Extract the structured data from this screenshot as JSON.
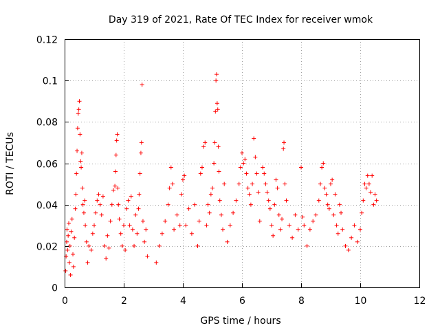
{
  "chart_data": {
    "type": "scatter",
    "title": "Day 319 of 2021, Rate Of TEC Index for receiver wmok",
    "xlabel": "GPS time / hours",
    "ylabel": "ROTI / TECUs",
    "xlim": [
      0,
      12
    ],
    "ylim": [
      0,
      0.12
    ],
    "xticks": [
      "0",
      "2",
      "4",
      "6",
      "8",
      "10",
      "12"
    ],
    "yticks": [
      "0",
      "0.02",
      "0.04",
      "0.06",
      "0.08",
      "0.1",
      "0.12"
    ],
    "grid": true,
    "marker": "+",
    "color": "#ff0000",
    "series": [
      {
        "points": [
          [
            0.03,
            0.008
          ],
          [
            0.05,
            0.015
          ],
          [
            0.07,
            0.022
          ],
          [
            0.08,
            0.028
          ],
          [
            0.1,
            0.018
          ],
          [
            0.12,
            0.025
          ],
          [
            0.14,
            0.031
          ],
          [
            0.16,
            0.012
          ],
          [
            0.18,
            0.02
          ],
          [
            0.2,
            0.006
          ],
          [
            0.22,
            0.027
          ],
          [
            0.25,
            0.033
          ],
          [
            0.28,
            0.016
          ],
          [
            0.3,
            0.01
          ],
          [
            0.33,
            0.024
          ],
          [
            0.36,
            0.038
          ],
          [
            0.38,
            0.045
          ],
          [
            0.4,
            0.055
          ],
          [
            0.42,
            0.066
          ],
          [
            0.44,
            0.077
          ],
          [
            0.46,
            0.084
          ],
          [
            0.48,
            0.086
          ],
          [
            0.5,
            0.09
          ],
          [
            0.52,
            0.074
          ],
          [
            0.54,
            0.061
          ],
          [
            0.56,
            0.058
          ],
          [
            0.58,
            0.065
          ],
          [
            0.6,
            0.048
          ],
          [
            0.62,
            0.04
          ],
          [
            0.65,
            0.036
          ],
          [
            0.68,
            0.042
          ],
          [
            0.7,
            0.03
          ],
          [
            0.74,
            0.022
          ],
          [
            0.78,
            0.012
          ],
          [
            0.82,
            0.02
          ],
          [
            0.9,
            0.018
          ],
          [
            0.95,
            0.026
          ],
          [
            1.0,
            0.03
          ],
          [
            1.05,
            0.036
          ],
          [
            1.1,
            0.042
          ],
          [
            1.15,
            0.045
          ],
          [
            1.2,
            0.04
          ],
          [
            1.25,
            0.035
          ],
          [
            1.3,
            0.044
          ],
          [
            1.35,
            0.02
          ],
          [
            1.4,
            0.014
          ],
          [
            1.45,
            0.025
          ],
          [
            1.5,
            0.019
          ],
          [
            1.55,
            0.032
          ],
          [
            1.6,
            0.04
          ],
          [
            1.65,
            0.047
          ],
          [
            1.7,
            0.049
          ],
          [
            1.72,
            0.056
          ],
          [
            1.74,
            0.064
          ],
          [
            1.76,
            0.071
          ],
          [
            1.78,
            0.074
          ],
          [
            1.8,
            0.048
          ],
          [
            1.82,
            0.04
          ],
          [
            1.85,
            0.033
          ],
          [
            1.9,
            0.026
          ],
          [
            1.95,
            0.02
          ],
          [
            2.0,
            0.03
          ],
          [
            2.05,
            0.018
          ],
          [
            2.1,
            0.038
          ],
          [
            2.15,
            0.042
          ],
          [
            2.2,
            0.03
          ],
          [
            2.25,
            0.044
          ],
          [
            2.3,
            0.028
          ],
          [
            2.35,
            0.02
          ],
          [
            2.4,
            0.035
          ],
          [
            2.45,
            0.026
          ],
          [
            2.5,
            0.038
          ],
          [
            2.52,
            0.045
          ],
          [
            2.55,
            0.055
          ],
          [
            2.58,
            0.065
          ],
          [
            2.6,
            0.07
          ],
          [
            2.62,
            0.098
          ],
          [
            2.65,
            0.032
          ],
          [
            2.7,
            0.022
          ],
          [
            2.75,
            0.028
          ],
          [
            2.8,
            0.015
          ],
          [
            3.1,
            0.012
          ],
          [
            3.2,
            0.02
          ],
          [
            3.3,
            0.026
          ],
          [
            3.4,
            0.032
          ],
          [
            3.5,
            0.04
          ],
          [
            3.55,
            0.048
          ],
          [
            3.6,
            0.058
          ],
          [
            3.65,
            0.05
          ],
          [
            3.7,
            0.028
          ],
          [
            3.8,
            0.035
          ],
          [
            3.9,
            0.03
          ],
          [
            3.95,
            0.045
          ],
          [
            4.0,
            0.052
          ],
          [
            4.05,
            0.054
          ],
          [
            4.1,
            0.03
          ],
          [
            4.2,
            0.038
          ],
          [
            4.3,
            0.026
          ],
          [
            4.4,
            0.04
          ],
          [
            4.5,
            0.02
          ],
          [
            4.55,
            0.032
          ],
          [
            4.6,
            0.055
          ],
          [
            4.65,
            0.058
          ],
          [
            4.7,
            0.068
          ],
          [
            4.75,
            0.07
          ],
          [
            4.8,
            0.03
          ],
          [
            4.85,
            0.04
          ],
          [
            4.9,
            0.036
          ],
          [
            4.95,
            0.045
          ],
          [
            5.0,
            0.048
          ],
          [
            5.05,
            0.06
          ],
          [
            5.08,
            0.07
          ],
          [
            5.1,
            0.085
          ],
          [
            5.12,
            0.1
          ],
          [
            5.14,
            0.103
          ],
          [
            5.16,
            0.089
          ],
          [
            5.18,
            0.086
          ],
          [
            5.2,
            0.068
          ],
          [
            5.22,
            0.056
          ],
          [
            5.25,
            0.042
          ],
          [
            5.3,
            0.035
          ],
          [
            5.35,
            0.028
          ],
          [
            5.4,
            0.05
          ],
          [
            5.5,
            0.022
          ],
          [
            5.6,
            0.03
          ],
          [
            5.7,
            0.036
          ],
          [
            5.8,
            0.042
          ],
          [
            5.9,
            0.05
          ],
          [
            5.95,
            0.058
          ],
          [
            6.0,
            0.065
          ],
          [
            6.05,
            0.06
          ],
          [
            6.1,
            0.062
          ],
          [
            6.15,
            0.055
          ],
          [
            6.2,
            0.048
          ],
          [
            6.25,
            0.045
          ],
          [
            6.3,
            0.04
          ],
          [
            6.35,
            0.05
          ],
          [
            6.4,
            0.072
          ],
          [
            6.45,
            0.063
          ],
          [
            6.5,
            0.055
          ],
          [
            6.55,
            0.046
          ],
          [
            6.6,
            0.032
          ],
          [
            6.7,
            0.058
          ],
          [
            6.75,
            0.055
          ],
          [
            6.8,
            0.05
          ],
          [
            6.85,
            0.046
          ],
          [
            6.9,
            0.042
          ],
          [
            6.95,
            0.038
          ],
          [
            7.0,
            0.03
          ],
          [
            7.05,
            0.025
          ],
          [
            7.1,
            0.04
          ],
          [
            7.15,
            0.052
          ],
          [
            7.2,
            0.048
          ],
          [
            7.25,
            0.035
          ],
          [
            7.3,
            0.028
          ],
          [
            7.35,
            0.033
          ],
          [
            7.4,
            0.067
          ],
          [
            7.42,
            0.07
          ],
          [
            7.45,
            0.05
          ],
          [
            7.5,
            0.042
          ],
          [
            7.6,
            0.03
          ],
          [
            7.7,
            0.024
          ],
          [
            7.8,
            0.035
          ],
          [
            7.9,
            0.028
          ],
          [
            8.0,
            0.058
          ],
          [
            8.05,
            0.034
          ],
          [
            8.1,
            0.03
          ],
          [
            8.2,
            0.02
          ],
          [
            8.3,
            0.028
          ],
          [
            8.4,
            0.032
          ],
          [
            8.5,
            0.035
          ],
          [
            8.6,
            0.042
          ],
          [
            8.65,
            0.05
          ],
          [
            8.7,
            0.058
          ],
          [
            8.75,
            0.06
          ],
          [
            8.8,
            0.048
          ],
          [
            8.85,
            0.045
          ],
          [
            8.9,
            0.04
          ],
          [
            8.95,
            0.038
          ],
          [
            9.0,
            0.05
          ],
          [
            9.05,
            0.052
          ],
          [
            9.1,
            0.035
          ],
          [
            9.15,
            0.045
          ],
          [
            9.2,
            0.03
          ],
          [
            9.25,
            0.026
          ],
          [
            9.3,
            0.04
          ],
          [
            9.35,
            0.036
          ],
          [
            9.4,
            0.028
          ],
          [
            9.5,
            0.02
          ],
          [
            9.6,
            0.018
          ],
          [
            9.7,
            0.024
          ],
          [
            9.8,
            0.03
          ],
          [
            9.9,
            0.022
          ],
          [
            10.0,
            0.028
          ],
          [
            10.05,
            0.036
          ],
          [
            10.1,
            0.042
          ],
          [
            10.15,
            0.05
          ],
          [
            10.2,
            0.048
          ],
          [
            10.25,
            0.054
          ],
          [
            10.3,
            0.05
          ],
          [
            10.35,
            0.046
          ],
          [
            10.4,
            0.054
          ],
          [
            10.45,
            0.04
          ],
          [
            10.5,
            0.045
          ],
          [
            10.55,
            0.042
          ]
        ]
      }
    ]
  }
}
